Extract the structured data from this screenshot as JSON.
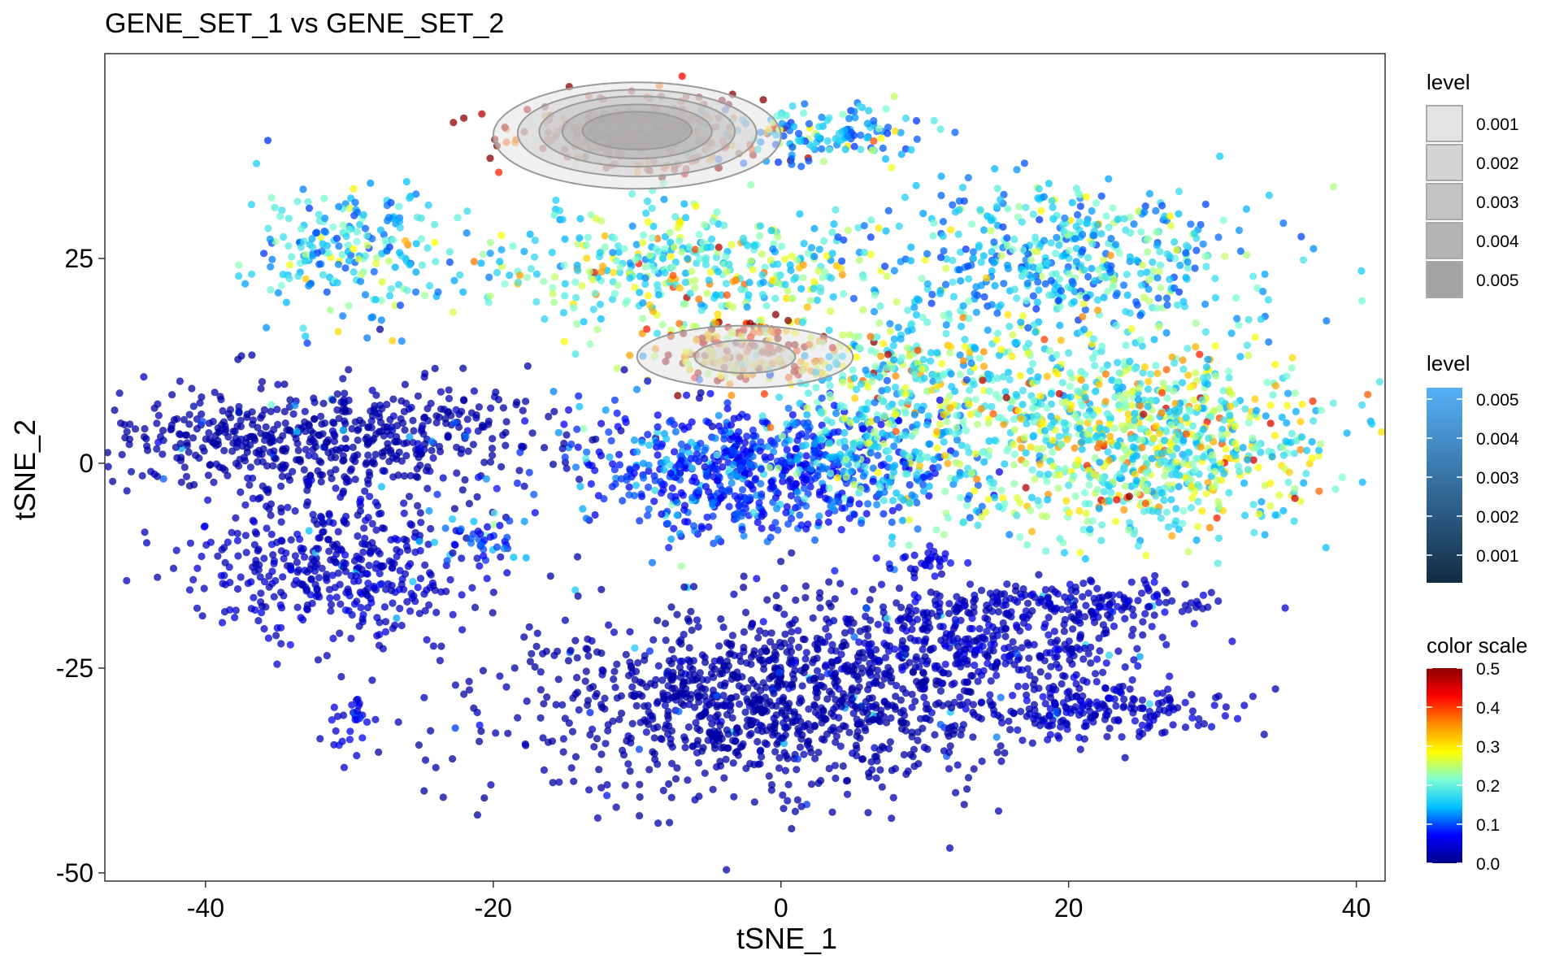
{
  "chart_data": {
    "type": "scatter",
    "title": "GENE_SET_1 vs GENE_SET_2",
    "xlabel": "tSNE_1",
    "ylabel": "tSNE_2",
    "xlim": [
      -47,
      42
    ],
    "ylim": [
      -51,
      50
    ],
    "x_ticks": [
      -40,
      -20,
      0,
      20,
      40
    ],
    "y_ticks": [
      -50,
      -25,
      0,
      25
    ],
    "grid": false,
    "point_color_scale": {
      "title": "color scale",
      "min": 0.0,
      "max": 0.5,
      "ticks": [
        "0.0",
        "0.1",
        "0.2",
        "0.3",
        "0.4",
        "0.5"
      ],
      "palette": [
        "#00008B",
        "#0000FF",
        "#00BFFF",
        "#7FFFD4",
        "#FFFF00",
        "#FF8C00",
        "#FF0000",
        "#8B0000"
      ]
    },
    "density_fill_legend": {
      "title": "level",
      "levels": [
        "0.001",
        "0.002",
        "0.003",
        "0.004",
        "0.005"
      ],
      "fills": [
        "#e3e3e3",
        "#d4d4d4",
        "#c4c4c4",
        "#b3b3b3",
        "#a3a3a3"
      ]
    },
    "density_color_legend": {
      "title": "level",
      "ticks": [
        "0.001",
        "0.002",
        "0.003",
        "0.004",
        "0.005"
      ],
      "low_color": "#132B43",
      "high_color": "#56B1F7"
    },
    "clusters": [
      {
        "cx": -30,
        "cy": 26,
        "sx": 3.5,
        "sy": 4.5,
        "n": 220,
        "expr": 0.09
      },
      {
        "cx": -32,
        "cy": 3,
        "sx": 8.5,
        "sy": 3.5,
        "n": 620,
        "expr": 0.01
      },
      {
        "cx": -31,
        "cy": -13,
        "sx": 5,
        "sy": 4.5,
        "n": 420,
        "expr": 0.02
      },
      {
        "cx": -21,
        "cy": -9,
        "sx": 2,
        "sy": 1.6,
        "n": 40,
        "expr": 0.06
      },
      {
        "cx": -30,
        "cy": -32,
        "sx": 1.1,
        "sy": 1.6,
        "n": 30,
        "expr": 0.03
      },
      {
        "cx": -10,
        "cy": 40,
        "sx": 4.2,
        "sy": 2.3,
        "n": 300,
        "expr": 0.32
      },
      {
        "cx": 2,
        "cy": 40,
        "sx": 3.5,
        "sy": 2,
        "n": 140,
        "expr": 0.09
      },
      {
        "cx": -7,
        "cy": 24,
        "sx": 6.5,
        "sy": 3.5,
        "n": 420,
        "expr": 0.12
      },
      {
        "cx": -2.5,
        "cy": 14,
        "sx": 3.5,
        "sy": 2.2,
        "n": 200,
        "expr": 0.22
      },
      {
        "cx": 10,
        "cy": 12,
        "sx": 4,
        "sy": 3.5,
        "n": 230,
        "expr": 0.12
      },
      {
        "cx": -2,
        "cy": -1,
        "sx": 6.5,
        "sy": 4,
        "n": 720,
        "expr": 0.05
      },
      {
        "cx": 8,
        "cy": 3,
        "sx": 4.5,
        "sy": 5,
        "n": 260,
        "expr": 0.1
      },
      {
        "cx": 20,
        "cy": 25,
        "sx": 6.5,
        "sy": 4.5,
        "n": 520,
        "expr": 0.09
      },
      {
        "cx": 25,
        "cy": 3,
        "sx": 6.5,
        "sy": 6,
        "n": 960,
        "expr": 0.13
      },
      {
        "cx": 10,
        "cy": -12,
        "sx": 1.2,
        "sy": 0.9,
        "n": 30,
        "expr": 0.03
      },
      {
        "cx": -1,
        "cy": -29,
        "sx": 8.5,
        "sy": 6,
        "n": 1150,
        "expr": 0.01
      },
      {
        "cx": 14,
        "cy": -22,
        "sx": 5.5,
        "sy": 2.8,
        "n": 300,
        "expr": 0.02
      },
      {
        "cx": 20,
        "cy": -17,
        "sx": 5.5,
        "sy": 1.3,
        "n": 180,
        "expr": 0.02
      },
      {
        "cx": 22,
        "cy": -30,
        "sx": 4.5,
        "sy": 1.8,
        "n": 210,
        "expr": 0.02
      }
    ]
  }
}
